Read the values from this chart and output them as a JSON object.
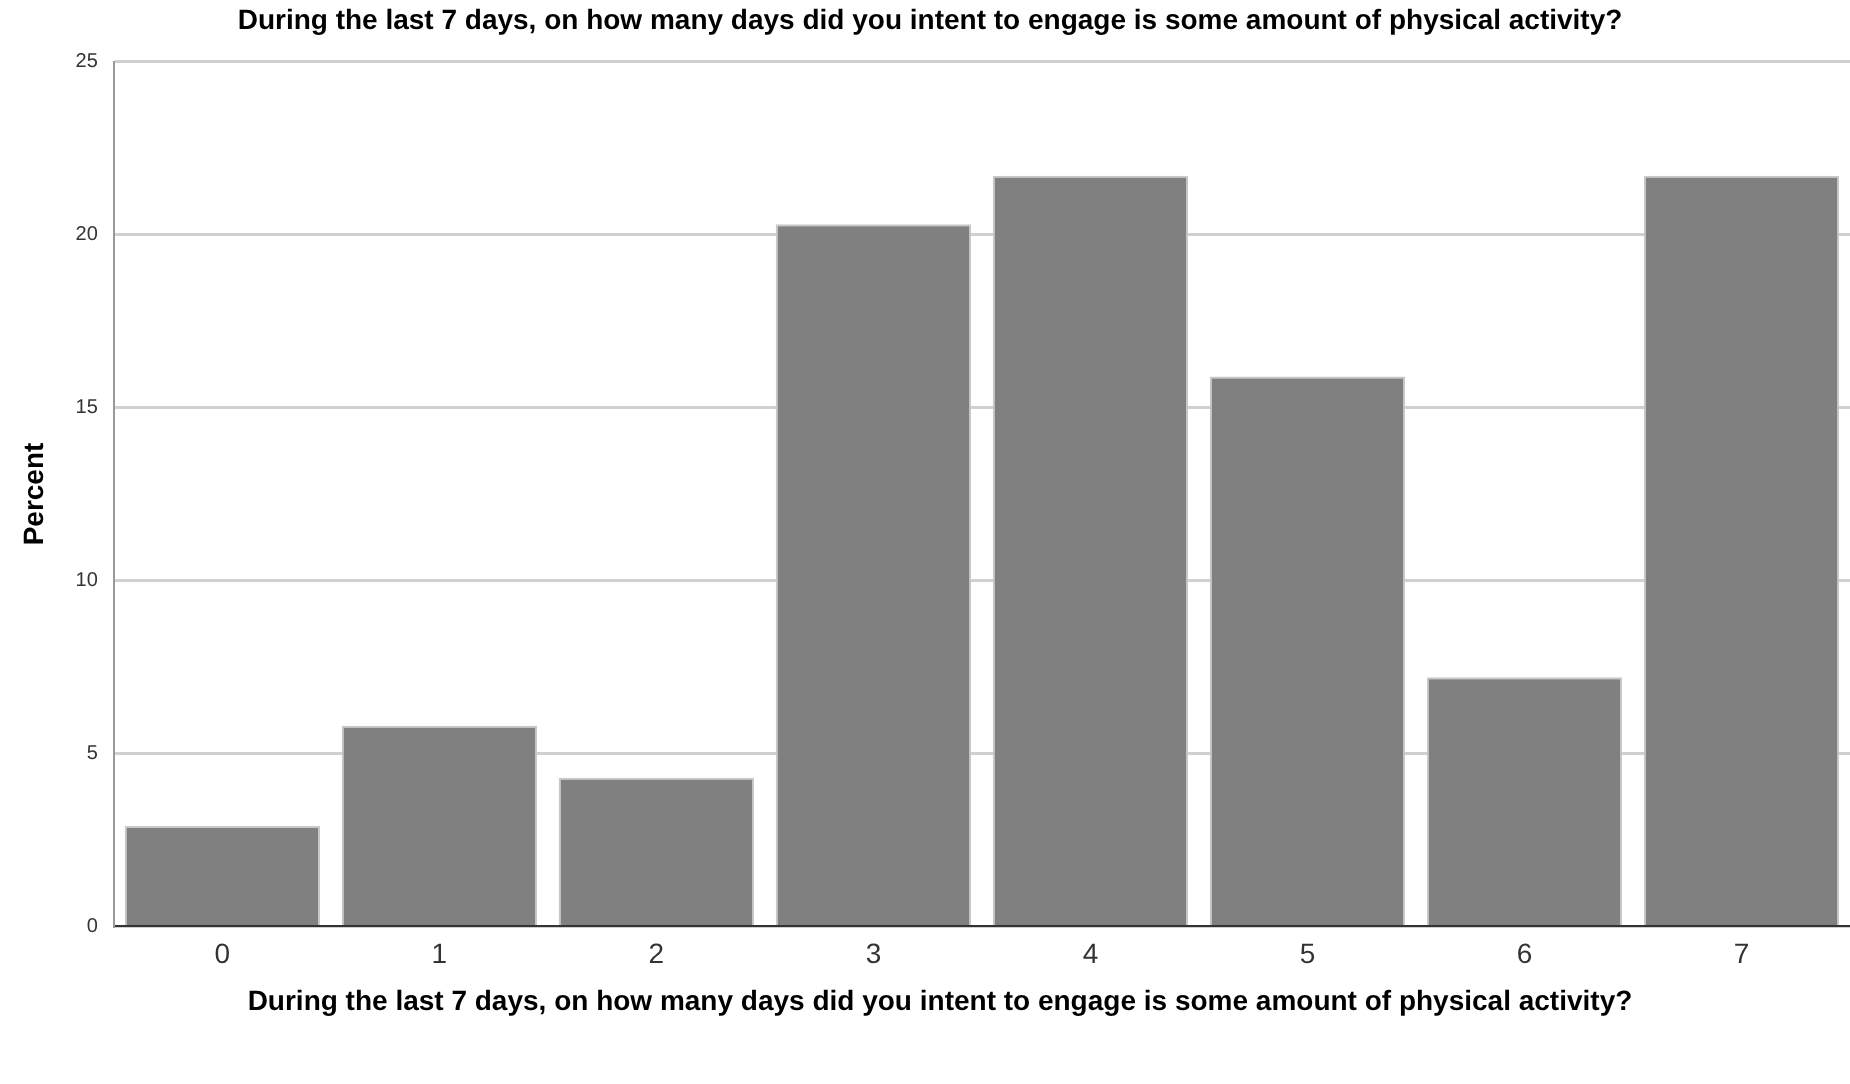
{
  "chart_data": {
    "type": "bar",
    "title": "During the last 7 days, on how many days did you intent to engage is some amount of physical activity?",
    "xlabel": "During the last 7 days, on how many days did you intent to engage is some amount of physical activity?",
    "ylabel": "Percent",
    "categories": [
      "0",
      "1",
      "2",
      "3",
      "4",
      "5",
      "6",
      "7"
    ],
    "values": [
      2.9,
      5.8,
      4.3,
      20.3,
      21.7,
      15.9,
      7.2,
      21.7
    ],
    "color": "#808080",
    "ylim": [
      0,
      25
    ],
    "yticks": [
      0,
      5,
      10,
      15,
      20,
      25
    ],
    "grid": "y",
    "legend": false
  }
}
